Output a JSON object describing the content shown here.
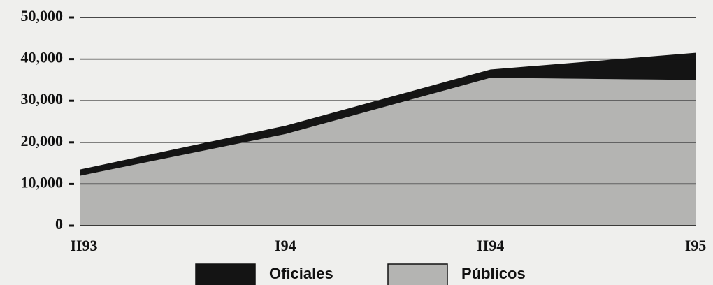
{
  "chart_data": {
    "type": "stacked_area",
    "categories": [
      "II93",
      "I94",
      "II94",
      "I95"
    ],
    "series": [
      {
        "name": "Públicos",
        "color": "#b4b4b2",
        "values": [
          12000,
          22000,
          35500,
          35000
        ]
      },
      {
        "name": "Oficiales",
        "color": "#141414",
        "values": [
          1500,
          2000,
          2000,
          6500
        ]
      }
    ],
    "ylim": [
      0,
      50000
    ],
    "yticks": [
      0,
      {
        "value": 10000,
        "label": "10,000"
      },
      {
        "value": 20000,
        "label": "20,000"
      },
      {
        "value": 30000,
        "label": "30,000"
      },
      {
        "value": 40000,
        "label": "40,000"
      },
      {
        "value": 50000,
        "label": "50,000"
      }
    ],
    "grid": true,
    "legend": "bottom"
  }
}
